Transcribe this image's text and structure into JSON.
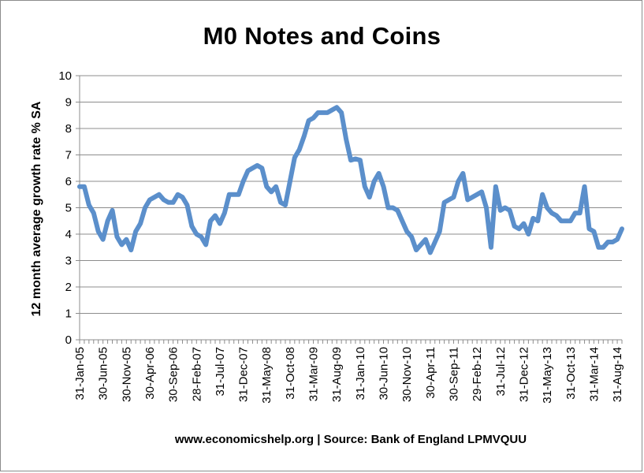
{
  "chart_data": {
    "type": "line",
    "title": "M0 Notes and Coins",
    "ylabel": "12 month average growth rate % SA",
    "xlabel": "",
    "source": "www.economicshelp.org | Source: Bank of England LPMVQUU",
    "ylim": [
      0,
      10
    ],
    "yticks": [
      "0",
      "1",
      "2",
      "3",
      "4",
      "5",
      "6",
      "7",
      "8",
      "9",
      "10"
    ],
    "grid": true,
    "line_color": "#5b8fcb",
    "x_tick_labels": [
      "31-Jan-05",
      "30-Jun-05",
      "30-Nov-05",
      "30-Apr-06",
      "30-Sep-06",
      "28-Feb-07",
      "31-Jul-07",
      "31-Dec-07",
      "31-May-08",
      "31-Oct-08",
      "31-Mar-09",
      "31-Aug-09",
      "31-Jan-10",
      "30-Jun-10",
      "30-Nov-10",
      "30-Apr-11",
      "30-Sep-11",
      "29-Feb-12",
      "31-Jul-12",
      "31-Dec-12",
      "31-May-13",
      "31-Oct-13",
      "31-Mar-14",
      "31-Aug-14"
    ],
    "series": [
      {
        "values": [
          5.8,
          5.8,
          5.1,
          4.8,
          4.1,
          3.8,
          4.5,
          4.9,
          3.9,
          3.6,
          3.8,
          3.4,
          4.1,
          4.4,
          5.0,
          5.3,
          5.4,
          5.5,
          5.3,
          5.2,
          5.2,
          5.5,
          5.4,
          5.1,
          4.3,
          4.0,
          3.9,
          3.6,
          4.5,
          4.7,
          4.4,
          4.8,
          5.5,
          5.5,
          5.5,
          6.0,
          6.4,
          6.5,
          6.6,
          6.5,
          5.8,
          5.6,
          5.8,
          5.2,
          5.1,
          6.0,
          6.9,
          7.2,
          7.7,
          8.3,
          8.4,
          8.6,
          8.6,
          8.6,
          8.7,
          8.8,
          8.6,
          7.6,
          6.8,
          6.85,
          6.8,
          5.8,
          5.4,
          6.0,
          6.3,
          5.8,
          5.0,
          5.0,
          4.9,
          4.5,
          4.1,
          3.9,
          3.4,
          3.6,
          3.8,
          3.3,
          3.7,
          4.1,
          5.2,
          5.3,
          5.4,
          6.0,
          6.3,
          5.3,
          5.4,
          5.5,
          5.6,
          5.0,
          3.5,
          5.8,
          4.9,
          5.0,
          4.9,
          4.3,
          4.2,
          4.4,
          4.0,
          4.6,
          4.5,
          5.5,
          5.0,
          4.8,
          4.7,
          4.5,
          4.5,
          4.5,
          4.8,
          4.8,
          5.8,
          4.2,
          4.1,
          3.5,
          3.5,
          3.7,
          3.7,
          3.8,
          4.2
        ]
      }
    ]
  }
}
